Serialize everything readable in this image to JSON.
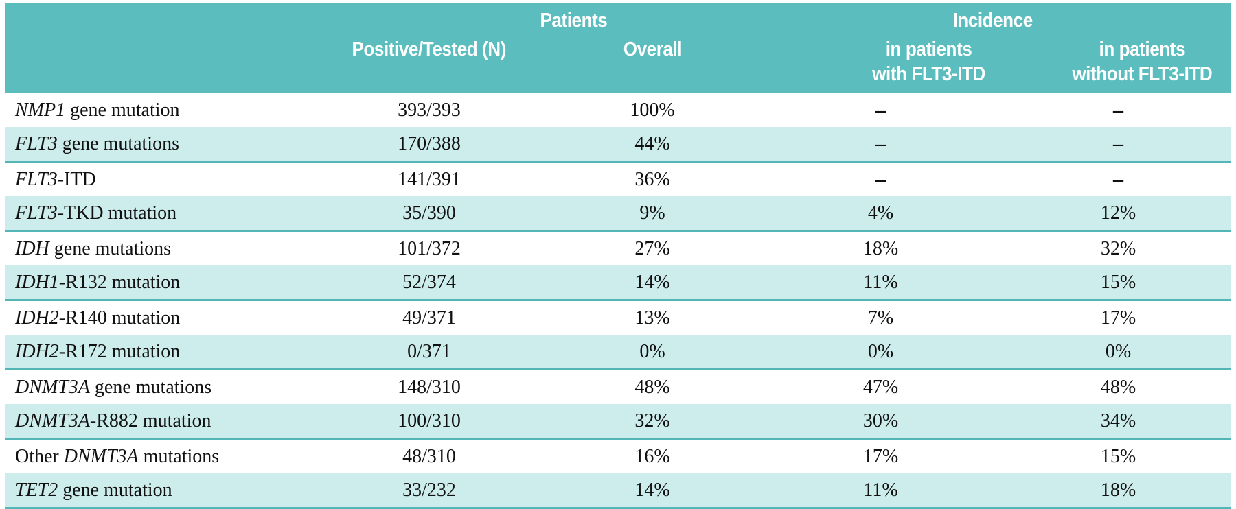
{
  "colors": {
    "header_teal": "#5cbdbe",
    "shaded_row": "#cdecec",
    "shaded_row_border": "#54b5b7",
    "header_text": "#ffffff",
    "body_text": "#111111"
  },
  "table": {
    "header": {
      "patients_group": "Patients",
      "incidence_group": "Incidence",
      "col_positive_tested": "Positive/Tested (N)",
      "col_overall": "Overall",
      "col_with_flt3_line1": "in patients",
      "col_with_flt3_line2": "with FLT3-ITD",
      "col_without_flt3_line1": "in patients",
      "col_without_flt3_line2": "without FLT3-ITD"
    },
    "rows": [
      {
        "label": [
          {
            "t": "NMP1",
            "i": true
          },
          {
            "t": " gene mutation",
            "i": false
          }
        ],
        "positive_tested": "393/393",
        "overall": "100%",
        "with_flt3": "–",
        "without_flt3": "–",
        "shaded": false
      },
      {
        "label": [
          {
            "t": "FLT3",
            "i": true
          },
          {
            "t": " gene mutations",
            "i": false
          }
        ],
        "positive_tested": "170/388",
        "overall": "44%",
        "with_flt3": "–",
        "without_flt3": "–",
        "shaded": true
      },
      {
        "label": [
          {
            "t": "FLT3",
            "i": true
          },
          {
            "t": "-ITD",
            "i": false
          }
        ],
        "positive_tested": "141/391",
        "overall": "36%",
        "with_flt3": "–",
        "without_flt3": "–",
        "shaded": false
      },
      {
        "label": [
          {
            "t": "FLT3",
            "i": true
          },
          {
            "t": "-TKD mutation",
            "i": false
          }
        ],
        "positive_tested": "35/390",
        "overall": "9%",
        "with_flt3": "4%",
        "without_flt3": "12%",
        "shaded": true
      },
      {
        "label": [
          {
            "t": "IDH",
            "i": true
          },
          {
            "t": " gene mutations",
            "i": false
          }
        ],
        "positive_tested": "101/372",
        "overall": "27%",
        "with_flt3": "18%",
        "without_flt3": "32%",
        "shaded": false
      },
      {
        "label": [
          {
            "t": "IDH1",
            "i": true
          },
          {
            "t": "-R132 mutation",
            "i": false
          }
        ],
        "positive_tested": "52/374",
        "overall": "14%",
        "with_flt3": "11%",
        "without_flt3": "15%",
        "shaded": true
      },
      {
        "label": [
          {
            "t": "IDH2",
            "i": true
          },
          {
            "t": "-R140 mutation",
            "i": false
          }
        ],
        "positive_tested": "49/371",
        "overall": "13%",
        "with_flt3": "7%",
        "without_flt3": "17%",
        "shaded": false
      },
      {
        "label": [
          {
            "t": "IDH2",
            "i": true
          },
          {
            "t": "-R172 mutation",
            "i": false
          }
        ],
        "positive_tested": "0/371",
        "overall": "0%",
        "with_flt3": "0%",
        "without_flt3": "0%",
        "shaded": true
      },
      {
        "label": [
          {
            "t": "DNMT3A",
            "i": true
          },
          {
            "t": " gene mutations",
            "i": false
          }
        ],
        "positive_tested": "148/310",
        "overall": "48%",
        "with_flt3": "47%",
        "without_flt3": "48%",
        "shaded": false
      },
      {
        "label": [
          {
            "t": "DNMT3A",
            "i": true
          },
          {
            "t": "-R882 mutation",
            "i": false
          }
        ],
        "positive_tested": "100/310",
        "overall": "32%",
        "with_flt3": "30%",
        "without_flt3": "34%",
        "shaded": true
      },
      {
        "label": [
          {
            "t": "Other ",
            "i": false
          },
          {
            "t": "DNMT3A",
            "i": true
          },
          {
            "t": " mutations",
            "i": false
          }
        ],
        "positive_tested": "48/310",
        "overall": "16%",
        "with_flt3": "17%",
        "without_flt3": "15%",
        "shaded": false
      },
      {
        "label": [
          {
            "t": "TET2",
            "i": true
          },
          {
            "t": " gene mutation",
            "i": false
          }
        ],
        "positive_tested": "33/232",
        "overall": "14%",
        "with_flt3": "11%",
        "without_flt3": "18%",
        "shaded": true
      }
    ]
  }
}
